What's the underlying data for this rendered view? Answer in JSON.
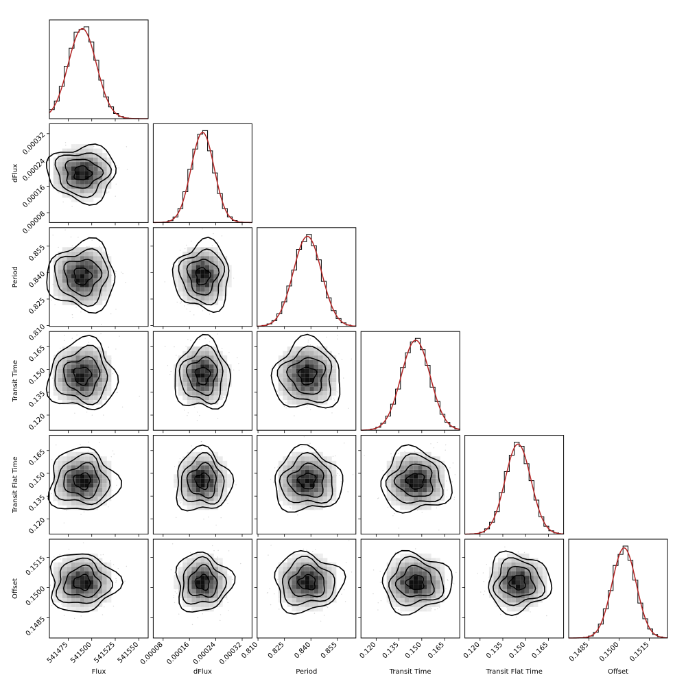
{
  "chart_data": {
    "type": "corner",
    "parameters": [
      {
        "name": "Flux",
        "xlabel": "Flux",
        "ylabel": "",
        "range": [
          541455,
          541560
        ],
        "ticks": [
          541475,
          541500,
          541525,
          541550
        ],
        "tick_labels": [
          "541475",
          "541500",
          "541525",
          "541550"
        ],
        "mean": 541490,
        "sd": 15
      },
      {
        "name": "dFlux",
        "xlabel": "dFlux",
        "ylabel": "dFlux",
        "range": [
          5e-05,
          0.00035
        ],
        "ticks": [
          8e-05,
          0.00016,
          0.00024,
          0.00032
        ],
        "tick_labels": [
          "0.00008",
          "0.00016",
          "0.00024",
          "0.00032"
        ],
        "mean": 0.0002,
        "sd": 3.5e-05
      },
      {
        "name": "Period",
        "xlabel": "Period",
        "ylabel": "Period",
        "range": [
          0.8095,
          0.8655
        ],
        "ticks": [
          0.81,
          0.825,
          0.84,
          0.855
        ],
        "tick_labels": [
          "0.810",
          "0.825",
          "0.840",
          "0.855"
        ],
        "mean": 0.838,
        "sd": 0.008
      },
      {
        "name": "Transit Time",
        "xlabel": "Transit Time",
        "ylabel": "Transit Time",
        "range": [
          0.11,
          0.175
        ],
        "ticks": [
          0.12,
          0.135,
          0.15,
          0.165
        ],
        "tick_labels": [
          "0.120",
          "0.135",
          "0.150",
          "0.165"
        ],
        "mean": 0.146,
        "sd": 0.0095
      },
      {
        "name": "Transit Flat Time",
        "xlabel": "Transit Flat Time",
        "ylabel": "Transit Flat Time",
        "range": [
          0.11,
          0.175
        ],
        "ticks": [
          0.12,
          0.135,
          0.15,
          0.165
        ],
        "tick_labels": [
          "0.120",
          "0.135",
          "0.150",
          "0.165"
        ],
        "mean": 0.145,
        "sd": 0.0085
      },
      {
        "name": "Offset",
        "xlabel": "Offset",
        "ylabel": "Offset",
        "range": [
          0.1475,
          0.1524
        ],
        "ticks": [
          0.1485,
          0.15,
          0.1515
        ],
        "tick_labels": [
          "0.1485",
          "0.1500",
          "0.1515"
        ],
        "mean": 0.15025,
        "sd": 0.0006
      }
    ],
    "histogram_color": "#000000",
    "kde_color": "#b22222",
    "density_colormap": "greys",
    "contour_color": "#000000",
    "sample_color": "#888888",
    "grid": false
  }
}
